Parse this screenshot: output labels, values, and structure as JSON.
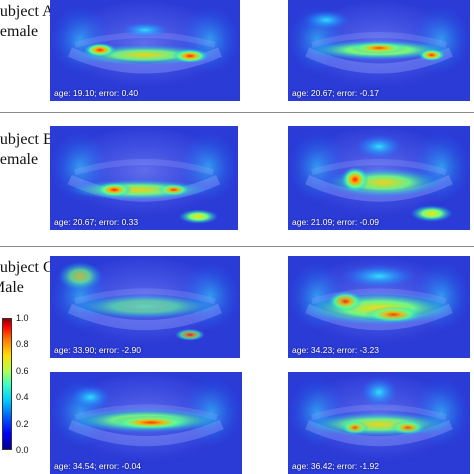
{
  "subjects": [
    {
      "line1": "Subject A",
      "line2": "Female"
    },
    {
      "line1": "Subject B",
      "line2": "Female"
    },
    {
      "line1": "Subject C",
      "line2": "Male"
    }
  ],
  "captions": [
    "age: 19.10; error: 0.40",
    "age: 20.67; error: -0.17",
    "age: 20.67; error: 0.33",
    "age: 21.09; error: -0.09",
    "age: 33.90; error: -2.90",
    "age: 34.23; error: -3.23",
    "age: 34.54; error: -0.04",
    "age: 36.42; error: -1.92"
  ],
  "colorbar": {
    "ticks": [
      "1.0",
      "0.8",
      "0.6",
      "0.4",
      "0.2",
      "0.0"
    ],
    "colormap": "jet"
  },
  "colors": {
    "panel_base": "#2a3ad8",
    "divider": "#8a8a8a"
  }
}
